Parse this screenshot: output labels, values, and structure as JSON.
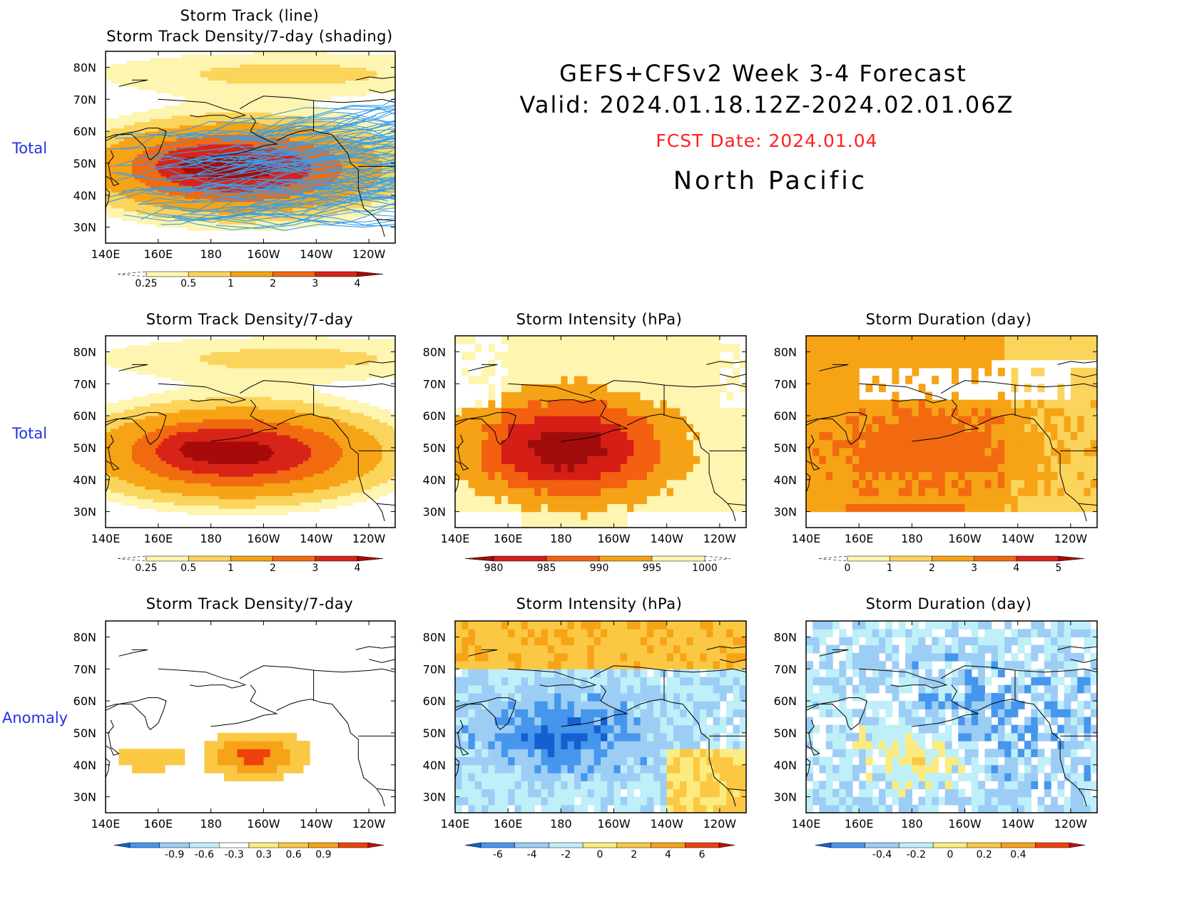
{
  "header": {
    "title_line1": "GEFS+CFSv2 Week 3-4 Forecast",
    "title_line2": "Valid: 2024.01.18.12Z-2024.02.01.06Z",
    "fcst_date": "FCST Date: 2024.01.04",
    "region": "North Pacific"
  },
  "row_labels": {
    "row1": "Total",
    "row2": "Total",
    "row3": "Anomaly"
  },
  "colors": {
    "land_line": "#000000",
    "track_line": "#3a9ee8",
    "row_label": "#1f32e6",
    "fcst": "#ff2020"
  },
  "map": {
    "lon_ticks": [
      "140E",
      "160E",
      "180",
      "160W",
      "140W",
      "120W"
    ],
    "lat_ticks": [
      "80N",
      "70N",
      "60N",
      "50N",
      "40N",
      "30N"
    ]
  },
  "chart_data": [
    {
      "id": "p1",
      "type": "heatmap",
      "title_line1": "Storm Track (line)",
      "title_line2": "Storm Track Density/7-day (shading)",
      "field": "density",
      "tracks": true,
      "colorbar": {
        "labels": [
          "0.25",
          "0.5",
          "1",
          "2",
          "3",
          "4"
        ],
        "colors": [
          "#fdf5b0",
          "#fbd45c",
          "#f6a316",
          "#f26a10",
          "#d82418",
          "#a80a0a"
        ],
        "under_dashed": true,
        "over_arrow": true
      }
    },
    {
      "id": "p2",
      "type": "heatmap",
      "title_line1": "Storm Track Density/7-day",
      "field": "density",
      "tracks": false,
      "colorbar": {
        "labels": [
          "0.25",
          "0.5",
          "1",
          "2",
          "3",
          "4"
        ],
        "colors": [
          "#fdf5b0",
          "#fbd45c",
          "#f6a316",
          "#f26a10",
          "#d82418",
          "#a80a0a"
        ],
        "under_dashed": true,
        "over_arrow": true
      }
    },
    {
      "id": "p3",
      "type": "heatmap",
      "title_line1": "Storm Intensity (hPa)",
      "field": "intensity",
      "colorbar": {
        "labels": [
          "980",
          "985",
          "990",
          "995",
          "1000"
        ],
        "colors": [
          "#a00c0c",
          "#d41e16",
          "#f26010",
          "#f6a216",
          "#fdf5b0"
        ],
        "under_arrow": true,
        "over_dashed": true
      }
    },
    {
      "id": "p4",
      "type": "heatmap",
      "title_line1": "Storm Duration (day)",
      "field": "duration",
      "colorbar": {
        "labels": [
          "0",
          "1",
          "2",
          "3",
          "4",
          "5"
        ],
        "colors": [
          "#fdf5b0",
          "#fbd45c",
          "#f6a316",
          "#f26a10",
          "#d82418",
          "#a80a0a"
        ],
        "under_dashed": true,
        "over_arrow": true
      }
    },
    {
      "id": "p5",
      "type": "heatmap",
      "title_line1": "Storm Track Density/7-day",
      "field": "density_anom",
      "colorbar": {
        "labels": [
          "-0.9",
          "-0.6",
          "-0.3",
          "0.3",
          "0.6",
          "0.9"
        ],
        "colors": [
          "#1560d0",
          "#4596ec",
          "#9ccdf5",
          "#bfeff8",
          "#ffffff",
          "#fcec80",
          "#fbc844",
          "#f6a316",
          "#f0400e",
          "#c40c0c"
        ],
        "diverging": true
      }
    },
    {
      "id": "p6",
      "type": "heatmap",
      "title_line1": "Storm Intensity (hPa)",
      "field": "intensity_anom",
      "colorbar": {
        "labels": [
          "-6",
          "-4",
          "-2",
          "0",
          "2",
          "4",
          "6"
        ],
        "colors": [
          "#1560d0",
          "#4596ec",
          "#9ccdf5",
          "#bfeff8",
          "#fcec80",
          "#fbc844",
          "#f6a316",
          "#f0400e",
          "#c40c0c"
        ],
        "diverging": true
      }
    },
    {
      "id": "p7",
      "type": "heatmap",
      "title_line1": "Storm Duration (day)",
      "field": "duration_anom",
      "colorbar": {
        "labels": [
          "-0.4",
          "-0.2",
          "0",
          "0.2",
          "0.4"
        ],
        "colors": [
          "#1560d0",
          "#4596ec",
          "#9ccdf5",
          "#bfeff8",
          "#fcec80",
          "#fbc844",
          "#f6a316",
          "#f0400e",
          "#c40c0c"
        ],
        "diverging": true
      }
    }
  ]
}
